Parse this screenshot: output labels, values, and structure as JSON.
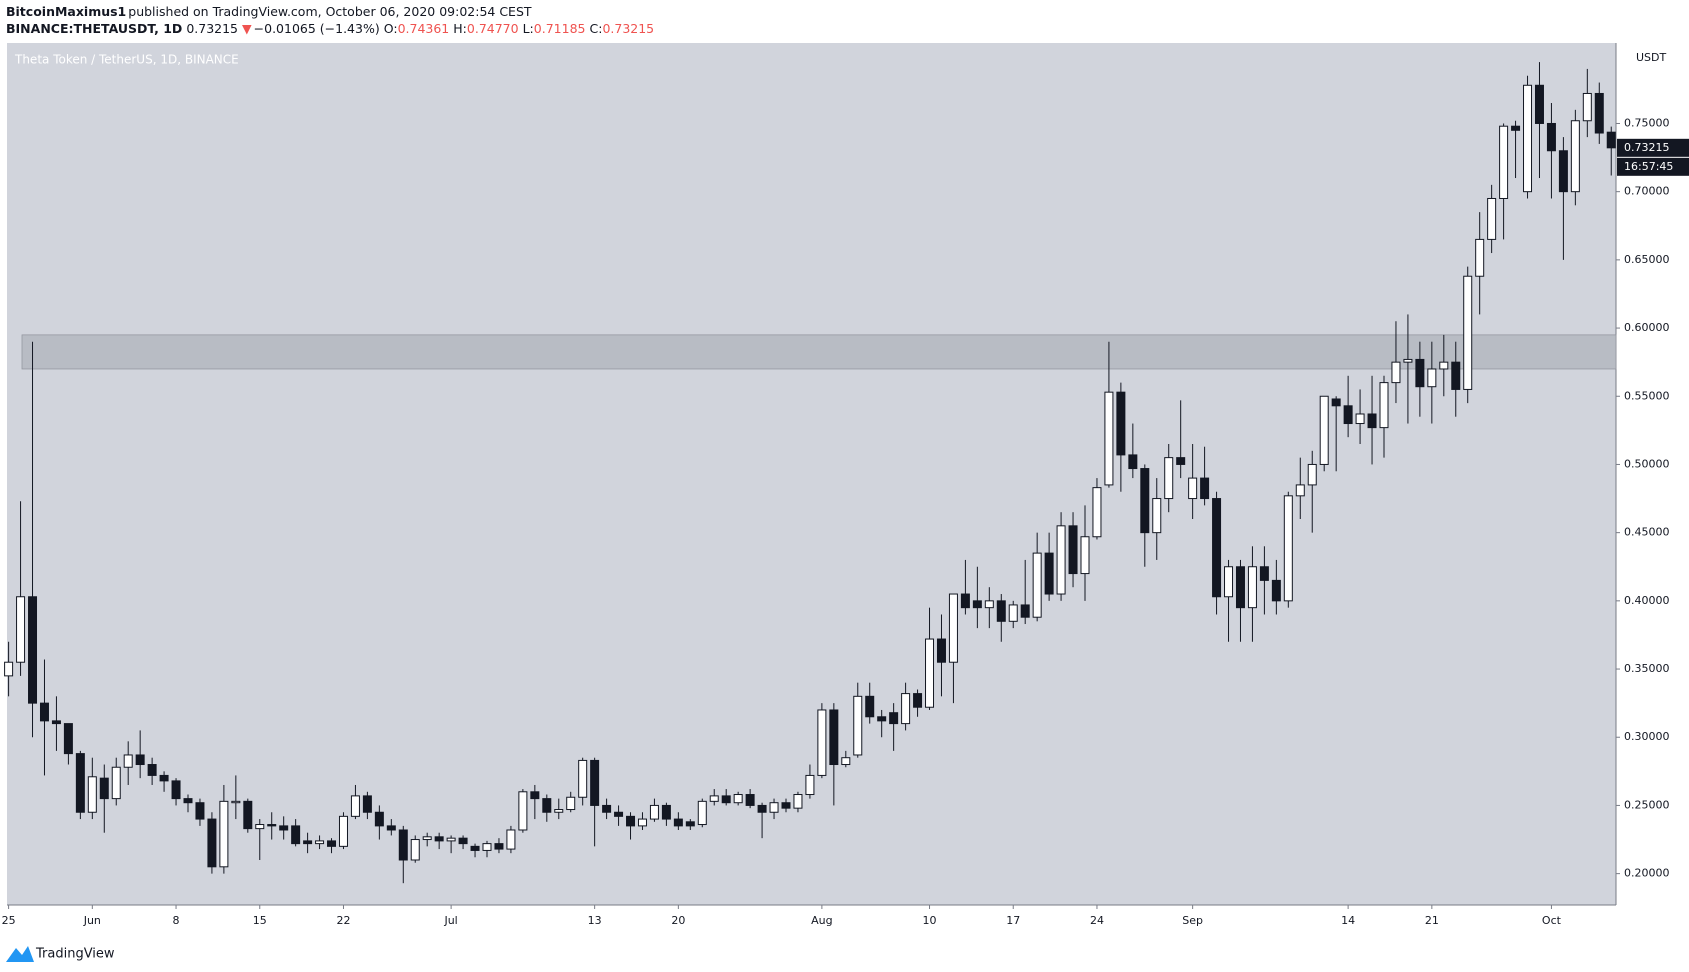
{
  "header": {
    "author": "BitcoinMaximus1",
    "published": "published on TradingView.com, October 06, 2020 09:02:54 CEST",
    "symbol": "BINANCE:THETAUSDT, 1D",
    "last": "0.73215",
    "arrow": "▼",
    "change": "−0.01065 (−1.43%)",
    "o_label": "O:",
    "o": "0.74361",
    "h_label": "H:",
    "h": "0.74770",
    "l_label": "L:",
    "l": "0.71185",
    "c_label": "C:",
    "c": "0.73215"
  },
  "footer": {
    "brand": "TradingView"
  },
  "chart_data": {
    "type": "candlestick",
    "title": "Theta Token / TetherUS, 1D, BINANCE",
    "y_axis_unit": "USDT",
    "price_label": "0.73215",
    "countdown": "16:57:45",
    "highlight_range": [
      0.57,
      0.595
    ],
    "x": [
      "2020-05-25",
      "2020-05-26",
      "2020-05-27",
      "2020-05-28",
      "2020-05-29",
      "2020-05-30",
      "2020-05-31",
      "2020-06-01",
      "2020-06-02",
      "2020-06-03",
      "2020-06-04",
      "2020-06-05",
      "2020-06-06",
      "2020-06-07",
      "2020-06-08",
      "2020-06-09",
      "2020-06-10",
      "2020-06-11",
      "2020-06-12",
      "2020-06-13",
      "2020-06-14",
      "2020-06-15",
      "2020-06-16",
      "2020-06-17",
      "2020-06-18",
      "2020-06-19",
      "2020-06-20",
      "2020-06-21",
      "2020-06-22",
      "2020-06-23",
      "2020-06-24",
      "2020-06-25",
      "2020-06-26",
      "2020-06-27",
      "2020-06-28",
      "2020-06-29",
      "2020-06-30",
      "2020-07-01",
      "2020-07-02",
      "2020-07-03",
      "2020-07-04",
      "2020-07-05",
      "2020-07-06",
      "2020-07-07",
      "2020-07-08",
      "2020-07-09",
      "2020-07-10",
      "2020-07-11",
      "2020-07-12",
      "2020-07-13",
      "2020-07-14",
      "2020-07-15",
      "2020-07-16",
      "2020-07-17",
      "2020-07-18",
      "2020-07-19",
      "2020-07-20",
      "2020-07-21",
      "2020-07-22",
      "2020-07-23",
      "2020-07-24",
      "2020-07-25",
      "2020-07-26",
      "2020-07-27",
      "2020-07-28",
      "2020-07-29",
      "2020-07-30",
      "2020-07-31",
      "2020-08-01",
      "2020-08-02",
      "2020-08-03",
      "2020-08-04",
      "2020-08-05",
      "2020-08-06",
      "2020-08-07",
      "2020-08-08",
      "2020-08-09",
      "2020-08-10",
      "2020-08-11",
      "2020-08-12",
      "2020-08-13",
      "2020-08-14",
      "2020-08-15",
      "2020-08-16",
      "2020-08-17",
      "2020-08-18",
      "2020-08-19",
      "2020-08-20",
      "2020-08-21",
      "2020-08-22",
      "2020-08-23",
      "2020-08-24",
      "2020-08-25",
      "2020-08-26",
      "2020-08-27",
      "2020-08-28",
      "2020-08-29",
      "2020-08-30",
      "2020-08-31",
      "2020-09-01",
      "2020-09-02",
      "2020-09-03",
      "2020-09-04",
      "2020-09-05",
      "2020-09-06",
      "2020-09-07",
      "2020-09-08",
      "2020-09-09",
      "2020-09-10",
      "2020-09-11",
      "2020-09-12",
      "2020-09-13",
      "2020-09-14",
      "2020-09-15",
      "2020-09-16",
      "2020-09-17",
      "2020-09-18",
      "2020-09-19",
      "2020-09-20",
      "2020-09-21",
      "2020-09-22",
      "2020-09-23",
      "2020-09-24",
      "2020-09-25",
      "2020-09-26",
      "2020-09-27",
      "2020-09-28",
      "2020-09-29",
      "2020-09-30",
      "2020-10-01",
      "2020-10-02",
      "2020-10-03",
      "2020-10-04",
      "2020-10-05",
      "2020-10-06"
    ],
    "open": [
      0.345,
      0.355,
      0.403,
      0.325,
      0.312,
      0.31,
      0.288,
      0.245,
      0.27,
      0.255,
      0.278,
      0.287,
      0.28,
      0.272,
      0.268,
      0.255,
      0.252,
      0.24,
      0.205,
      0.252,
      0.253,
      0.233,
      0.236,
      0.235,
      0.235,
      0.224,
      0.222,
      0.224,
      0.22,
      0.242,
      0.257,
      0.245,
      0.235,
      0.232,
      0.21,
      0.225,
      0.227,
      0.224,
      0.226,
      0.22,
      0.217,
      0.222,
      0.218,
      0.232,
      0.26,
      0.255,
      0.245,
      0.247,
      0.256,
      0.283,
      0.25,
      0.245,
      0.242,
      0.235,
      0.24,
      0.25,
      0.24,
      0.238,
      0.236,
      0.253,
      0.257,
      0.252,
      0.258,
      0.25,
      0.245,
      0.252,
      0.248,
      0.258,
      0.272,
      0.32,
      0.28,
      0.287,
      0.33,
      0.315,
      0.318,
      0.31,
      0.332,
      0.322,
      0.372,
      0.355,
      0.405,
      0.4,
      0.395,
      0.4,
      0.385,
      0.397,
      0.388,
      0.435,
      0.405,
      0.455,
      0.42,
      0.447,
      0.485,
      0.553,
      0.507,
      0.497,
      0.45,
      0.475,
      0.505,
      0.475,
      0.49,
      0.475,
      0.403,
      0.425,
      0.395,
      0.425,
      0.415,
      0.4,
      0.477,
      0.485,
      0.5,
      0.548,
      0.543,
      0.53,
      0.537,
      0.527,
      0.56,
      0.575,
      0.577,
      0.557,
      0.57,
      0.575,
      0.555,
      0.638,
      0.665,
      0.695,
      0.748,
      0.7,
      0.778,
      0.75,
      0.73,
      0.7,
      0.752,
      0.772,
      0.74361
    ],
    "high": [
      0.37,
      0.473,
      0.59,
      0.357,
      0.33,
      0.31,
      0.29,
      0.285,
      0.28,
      0.285,
      0.297,
      0.305,
      0.285,
      0.275,
      0.27,
      0.258,
      0.255,
      0.245,
      0.265,
      0.272,
      0.255,
      0.24,
      0.245,
      0.242,
      0.24,
      0.23,
      0.228,
      0.226,
      0.245,
      0.265,
      0.26,
      0.25,
      0.24,
      0.235,
      0.228,
      0.23,
      0.23,
      0.228,
      0.228,
      0.222,
      0.224,
      0.226,
      0.235,
      0.262,
      0.265,
      0.258,
      0.255,
      0.26,
      0.285,
      0.285,
      0.255,
      0.25,
      0.245,
      0.245,
      0.255,
      0.252,
      0.245,
      0.24,
      0.255,
      0.262,
      0.262,
      0.26,
      0.262,
      0.252,
      0.255,
      0.255,
      0.26,
      0.28,
      0.325,
      0.325,
      0.29,
      0.34,
      0.34,
      0.32,
      0.325,
      0.34,
      0.335,
      0.395,
      0.39,
      0.405,
      0.43,
      0.425,
      0.41,
      0.405,
      0.4,
      0.43,
      0.45,
      0.45,
      0.465,
      0.465,
      0.47,
      0.49,
      0.59,
      0.56,
      0.53,
      0.5,
      0.49,
      0.515,
      0.547,
      0.515,
      0.513,
      0.48,
      0.43,
      0.43,
      0.44,
      0.44,
      0.43,
      0.48,
      0.505,
      0.51,
      0.55,
      0.55,
      0.565,
      0.555,
      0.565,
      0.565,
      0.605,
      0.61,
      0.59,
      0.59,
      0.595,
      0.59,
      0.645,
      0.685,
      0.705,
      0.75,
      0.752,
      0.785,
      0.795,
      0.765,
      0.74,
      0.76,
      0.79,
      0.78,
      0.7477
    ],
    "low": [
      0.33,
      0.345,
      0.3,
      0.272,
      0.29,
      0.28,
      0.24,
      0.24,
      0.23,
      0.25,
      0.265,
      0.27,
      0.265,
      0.26,
      0.25,
      0.245,
      0.235,
      0.2,
      0.2,
      0.24,
      0.23,
      0.21,
      0.225,
      0.225,
      0.22,
      0.215,
      0.218,
      0.215,
      0.218,
      0.24,
      0.24,
      0.225,
      0.228,
      0.193,
      0.208,
      0.22,
      0.218,
      0.215,
      0.218,
      0.212,
      0.212,
      0.215,
      0.215,
      0.23,
      0.24,
      0.238,
      0.24,
      0.245,
      0.25,
      0.22,
      0.24,
      0.235,
      0.225,
      0.232,
      0.238,
      0.235,
      0.232,
      0.232,
      0.234,
      0.25,
      0.25,
      0.25,
      0.248,
      0.226,
      0.24,
      0.245,
      0.245,
      0.255,
      0.27,
      0.25,
      0.278,
      0.285,
      0.31,
      0.3,
      0.29,
      0.305,
      0.315,
      0.32,
      0.33,
      0.325,
      0.39,
      0.38,
      0.38,
      0.37,
      0.38,
      0.383,
      0.385,
      0.4,
      0.4,
      0.41,
      0.4,
      0.445,
      0.483,
      0.48,
      0.49,
      0.425,
      0.43,
      0.465,
      0.49,
      0.46,
      0.47,
      0.39,
      0.37,
      0.37,
      0.37,
      0.39,
      0.39,
      0.395,
      0.46,
      0.45,
      0.495,
      0.495,
      0.52,
      0.515,
      0.5,
      0.505,
      0.545,
      0.53,
      0.535,
      0.53,
      0.55,
      0.535,
      0.545,
      0.61,
      0.655,
      0.665,
      0.71,
      0.695,
      0.71,
      0.695,
      0.65,
      0.69,
      0.74,
      0.735,
      0.71185
    ],
    "close": [
      0.355,
      0.403,
      0.325,
      0.312,
      0.31,
      0.288,
      0.245,
      0.271,
      0.255,
      0.278,
      0.287,
      0.28,
      0.272,
      0.268,
      0.255,
      0.252,
      0.24,
      0.205,
      0.253,
      0.253,
      0.233,
      0.236,
      0.235,
      0.232,
      0.222,
      0.222,
      0.224,
      0.22,
      0.242,
      0.257,
      0.245,
      0.235,
      0.232,
      0.21,
      0.225,
      0.227,
      0.224,
      0.226,
      0.222,
      0.217,
      0.222,
      0.218,
      0.232,
      0.26,
      0.255,
      0.245,
      0.247,
      0.256,
      0.283,
      0.25,
      0.245,
      0.242,
      0.235,
      0.24,
      0.25,
      0.24,
      0.235,
      0.235,
      0.253,
      0.257,
      0.252,
      0.258,
      0.25,
      0.245,
      0.252,
      0.248,
      0.258,
      0.272,
      0.32,
      0.28,
      0.285,
      0.33,
      0.315,
      0.312,
      0.31,
      0.332,
      0.322,
      0.372,
      0.355,
      0.405,
      0.395,
      0.395,
      0.4,
      0.385,
      0.397,
      0.388,
      0.435,
      0.405,
      0.455,
      0.42,
      0.447,
      0.483,
      0.553,
      0.507,
      0.497,
      0.45,
      0.475,
      0.505,
      0.5,
      0.49,
      0.475,
      0.403,
      0.425,
      0.395,
      0.425,
      0.415,
      0.4,
      0.477,
      0.485,
      0.5,
      0.55,
      0.543,
      0.53,
      0.537,
      0.527,
      0.56,
      0.575,
      0.577,
      0.557,
      0.57,
      0.575,
      0.555,
      0.638,
      0.665,
      0.695,
      0.748,
      0.745,
      0.778,
      0.75,
      0.73,
      0.7,
      0.752,
      0.772,
      0.743,
      0.73215
    ],
    "up_color": "#ffffff",
    "down_color": "#131722",
    "background": "#d1d4dc",
    "highlight_color": "#b2b5be",
    "ylim": [
      0.177,
      0.809
    ],
    "yticks": [
      {
        "value": 0.2,
        "label": "0.20000"
      },
      {
        "value": 0.25,
        "label": "0.25000"
      },
      {
        "value": 0.3,
        "label": "0.30000"
      },
      {
        "value": 0.35,
        "label": "0.35000"
      },
      {
        "value": 0.4,
        "label": "0.40000"
      },
      {
        "value": 0.45,
        "label": "0.45000"
      },
      {
        "value": 0.5,
        "label": "0.50000"
      },
      {
        "value": 0.55,
        "label": "0.55000"
      },
      {
        "value": 0.6,
        "label": "0.60000"
      },
      {
        "value": 0.65,
        "label": "0.65000"
      },
      {
        "value": 0.7,
        "label": "0.70000"
      },
      {
        "value": 0.75,
        "label": "0.75000"
      }
    ],
    "xticks": [
      {
        "value": "2020-05-25",
        "label": "25"
      },
      {
        "value": "2020-06-01",
        "label": "Jun"
      },
      {
        "value": "2020-06-08",
        "label": "8"
      },
      {
        "value": "2020-06-15",
        "label": "15"
      },
      {
        "value": "2020-06-22",
        "label": "22"
      },
      {
        "value": "2020-07-01",
        "label": "Jul"
      },
      {
        "value": "2020-07-13",
        "label": "13"
      },
      {
        "value": "2020-07-20",
        "label": "20"
      },
      {
        "value": "2020-08-01",
        "label": "Aug"
      },
      {
        "value": "2020-08-10",
        "label": "10"
      },
      {
        "value": "2020-08-17",
        "label": "17"
      },
      {
        "value": "2020-08-24",
        "label": "24"
      },
      {
        "value": "2020-09-01",
        "label": "Sep"
      },
      {
        "value": "2020-09-14",
        "label": "14"
      },
      {
        "value": "2020-09-21",
        "label": "21"
      },
      {
        "value": "2020-10-01",
        "label": "Oct"
      }
    ]
  }
}
